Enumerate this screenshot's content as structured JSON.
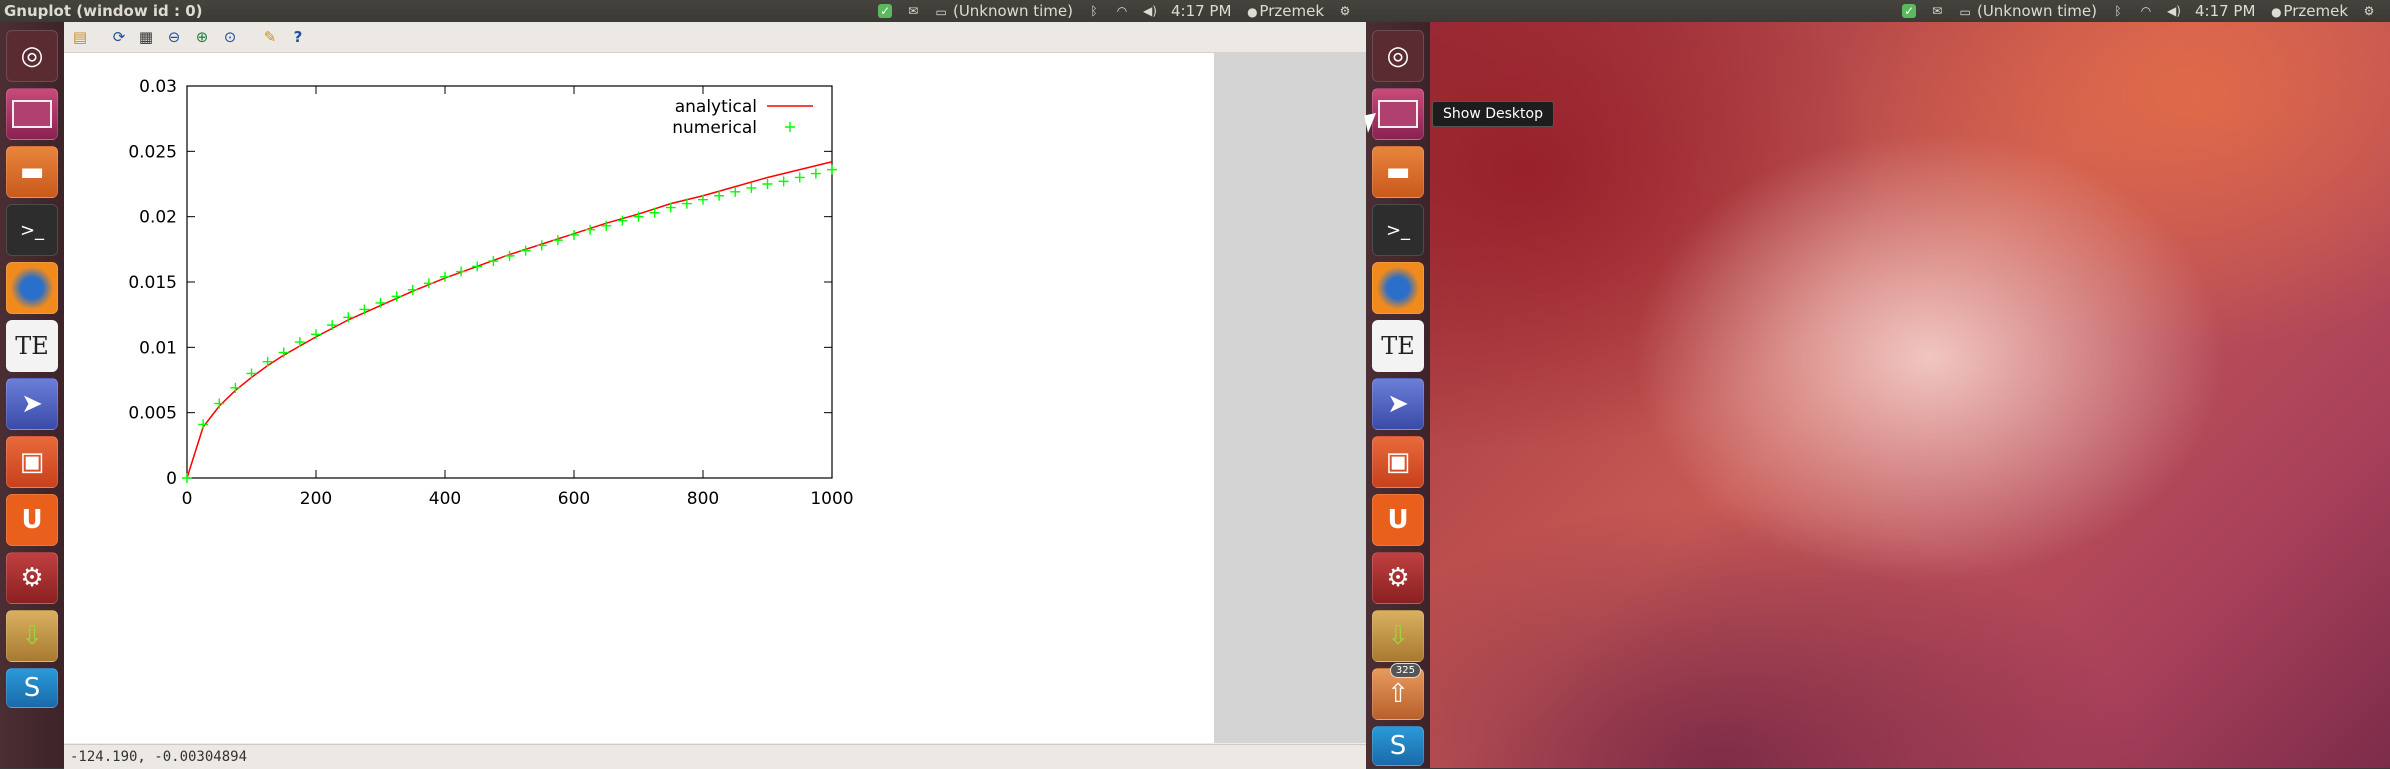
{
  "left_panel": {
    "window_title": "Gnuplot (window id : 0)",
    "time_status": "(Unknown time)",
    "clock": "4:17 PM",
    "user": "Przemek"
  },
  "right_panel": {
    "time_status": "(Unknown time)",
    "clock": "4:17 PM",
    "user": "Przemek"
  },
  "launcher": {
    "items": [
      "dash-home",
      "desktop",
      "files",
      "terminal",
      "firefox",
      "texmaker",
      "screenshot-tool",
      "software-center",
      "ubuntu-one",
      "system-settings",
      "update-manager",
      "skype"
    ],
    "badge": "325"
  },
  "tooltip": {
    "text": "Show Desktop"
  },
  "toolbar": {
    "buttons": [
      "copy-clipboard",
      "replot",
      "toggle-grid",
      "zoom-previous",
      "zoom-next",
      "autoscale",
      "options",
      "help"
    ]
  },
  "status_bar": {
    "coordinates": "-124.190, -0.00304894"
  },
  "chart_data": {
    "type": "line",
    "title": "",
    "xlabel": "",
    "ylabel": "",
    "xlim": [
      0,
      1000
    ],
    "ylim": [
      0,
      0.03
    ],
    "xticks": [
      "0",
      "200",
      "400",
      "600",
      "800",
      "1000"
    ],
    "yticks": [
      "0",
      "0.005",
      "0.01",
      "0.015",
      "0.02",
      "0.025",
      "0.03"
    ],
    "legend_position": "top-right",
    "series": [
      {
        "name": "analytical",
        "style": "line",
        "color": "#ff0000",
        "x": [
          0,
          25,
          50,
          75,
          100,
          125,
          150,
          175,
          200,
          250,
          300,
          350,
          400,
          450,
          500,
          550,
          600,
          650,
          700,
          750,
          800,
          850,
          900,
          950,
          1000
        ],
        "y": [
          0,
          0.0039,
          0.0055,
          0.0067,
          0.0077,
          0.0086,
          0.0094,
          0.0101,
          0.0108,
          0.0121,
          0.0132,
          0.0143,
          0.0153,
          0.0162,
          0.0171,
          0.0179,
          0.0187,
          0.0195,
          0.0202,
          0.021,
          0.0216,
          0.0223,
          0.023,
          0.0236,
          0.0242
        ]
      },
      {
        "name": "numerical",
        "style": "points",
        "color": "#00ff00",
        "x": [
          0,
          25,
          50,
          75,
          100,
          125,
          150,
          175,
          200,
          225,
          250,
          275,
          300,
          325,
          350,
          375,
          400,
          425,
          450,
          475,
          500,
          525,
          550,
          575,
          600,
          625,
          650,
          675,
          700,
          725,
          750,
          775,
          800,
          825,
          850,
          875,
          900,
          925,
          950,
          975,
          1000
        ],
        "y": [
          0,
          0.0041,
          0.0057,
          0.0069,
          0.008,
          0.0089,
          0.0096,
          0.0104,
          0.011,
          0.0117,
          0.0123,
          0.0129,
          0.0134,
          0.0139,
          0.0144,
          0.0149,
          0.0154,
          0.0158,
          0.0162,
          0.0166,
          0.017,
          0.0174,
          0.0178,
          0.0182,
          0.0186,
          0.019,
          0.0193,
          0.0197,
          0.02,
          0.0203,
          0.0207,
          0.021,
          0.0213,
          0.0216,
          0.0219,
          0.0222,
          0.0225,
          0.0227,
          0.023,
          0.0233,
          0.0236
        ]
      }
    ]
  }
}
